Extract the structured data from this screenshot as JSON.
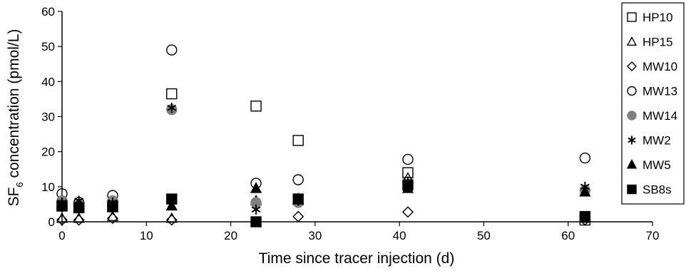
{
  "chart_data": {
    "type": "scatter",
    "xlabel": "Time since tracer injection (d)",
    "ylabel": {
      "prefix": "SF",
      "subscript": "6",
      "suffix": " concentration (pmol/L)"
    },
    "xlim": [
      0,
      70
    ],
    "ylim": [
      0,
      60
    ],
    "x_ticks": [
      0,
      10,
      20,
      30,
      40,
      50,
      60,
      70
    ],
    "y_ticks": [
      0,
      10,
      20,
      30,
      40,
      50,
      60
    ],
    "grid": false,
    "legend_position": "top-right",
    "series": [
      {
        "name": "HP10",
        "marker": "square-open",
        "color": "#000000",
        "points": [
          {
            "x": 0,
            "y": 4.5
          },
          {
            "x": 2,
            "y": 4.0
          },
          {
            "x": 6,
            "y": 4.5
          },
          {
            "x": 13,
            "y": 36.5
          },
          {
            "x": 23,
            "y": 33.0
          },
          {
            "x": 28,
            "y": 23.2
          },
          {
            "x": 41,
            "y": 14.0
          },
          {
            "x": 62,
            "y": 0.5
          }
        ]
      },
      {
        "name": "HP15",
        "marker": "triangle-open",
        "color": "#000000",
        "points": [
          {
            "x": 0,
            "y": 1.0
          },
          {
            "x": 2,
            "y": 1.0
          },
          {
            "x": 6,
            "y": 1.5
          },
          {
            "x": 13,
            "y": 1.0
          },
          {
            "x": 23,
            "y": 6.0
          },
          {
            "x": 28,
            "y": 6.0
          },
          {
            "x": 41,
            "y": 12.5
          },
          {
            "x": 62,
            "y": 1.0
          }
        ]
      },
      {
        "name": "MW10",
        "marker": "diamond-open",
        "color": "#000000",
        "points": [
          {
            "x": 0,
            "y": 0.5
          },
          {
            "x": 2,
            "y": 0.5
          },
          {
            "x": 6,
            "y": 1.0
          },
          {
            "x": 13,
            "y": 0.5
          },
          {
            "x": 23,
            "y": 5.5
          },
          {
            "x": 28,
            "y": 1.5
          },
          {
            "x": 41,
            "y": 2.8
          },
          {
            "x": 62,
            "y": 0.5
          }
        ]
      },
      {
        "name": "MW13",
        "marker": "circle-open",
        "color": "#000000",
        "points": [
          {
            "x": 0,
            "y": 8.0
          },
          {
            "x": 2,
            "y": 5.5
          },
          {
            "x": 6,
            "y": 7.5
          },
          {
            "x": 13,
            "y": 49.0
          },
          {
            "x": 23,
            "y": 11.0
          },
          {
            "x": 28,
            "y": 12.0
          },
          {
            "x": 41,
            "y": 17.8
          },
          {
            "x": 62,
            "y": 18.2
          }
        ]
      },
      {
        "name": "MW14",
        "marker": "circle-filled",
        "color": "#808080",
        "points": [
          {
            "x": 0,
            "y": 6.0
          },
          {
            "x": 2,
            "y": 5.0
          },
          {
            "x": 6,
            "y": 6.0
          },
          {
            "x": 13,
            "y": 32.0
          },
          {
            "x": 23,
            "y": 5.5
          },
          {
            "x": 28,
            "y": 5.5
          },
          {
            "x": 41,
            "y": 10.0
          },
          {
            "x": 62,
            "y": 9.0
          }
        ]
      },
      {
        "name": "MW2",
        "marker": "asterisk",
        "color": "#000000",
        "points": [
          {
            "x": 0,
            "y": 5.5
          },
          {
            "x": 2,
            "y": 6.0
          },
          {
            "x": 6,
            "y": 5.5
          },
          {
            "x": 13,
            "y": 32.5
          },
          {
            "x": 23,
            "y": 3.5
          },
          {
            "x": 28,
            "y": 6.0
          },
          {
            "x": 41,
            "y": 11.5
          },
          {
            "x": 62,
            "y": 10.0
          }
        ]
      },
      {
        "name": "MW5",
        "marker": "triangle-filled",
        "color": "#000000",
        "points": [
          {
            "x": 0,
            "y": 5.0
          },
          {
            "x": 2,
            "y": 4.5
          },
          {
            "x": 6,
            "y": 4.0
          },
          {
            "x": 13,
            "y": 4.5
          },
          {
            "x": 23,
            "y": 9.5
          },
          {
            "x": 28,
            "y": 6.5
          },
          {
            "x": 41,
            "y": 9.5
          },
          {
            "x": 62,
            "y": 8.5
          }
        ]
      },
      {
        "name": "SB8s",
        "marker": "square-filled",
        "color": "#000000",
        "points": [
          {
            "x": 0,
            "y": 4.5
          },
          {
            "x": 2,
            "y": 4.0
          },
          {
            "x": 6,
            "y": 4.5
          },
          {
            "x": 13,
            "y": 6.5
          },
          {
            "x": 23,
            "y": 0.0
          },
          {
            "x": 28,
            "y": 6.5
          },
          {
            "x": 41,
            "y": 10.5
          },
          {
            "x": 62,
            "y": 1.5
          }
        ]
      }
    ]
  }
}
